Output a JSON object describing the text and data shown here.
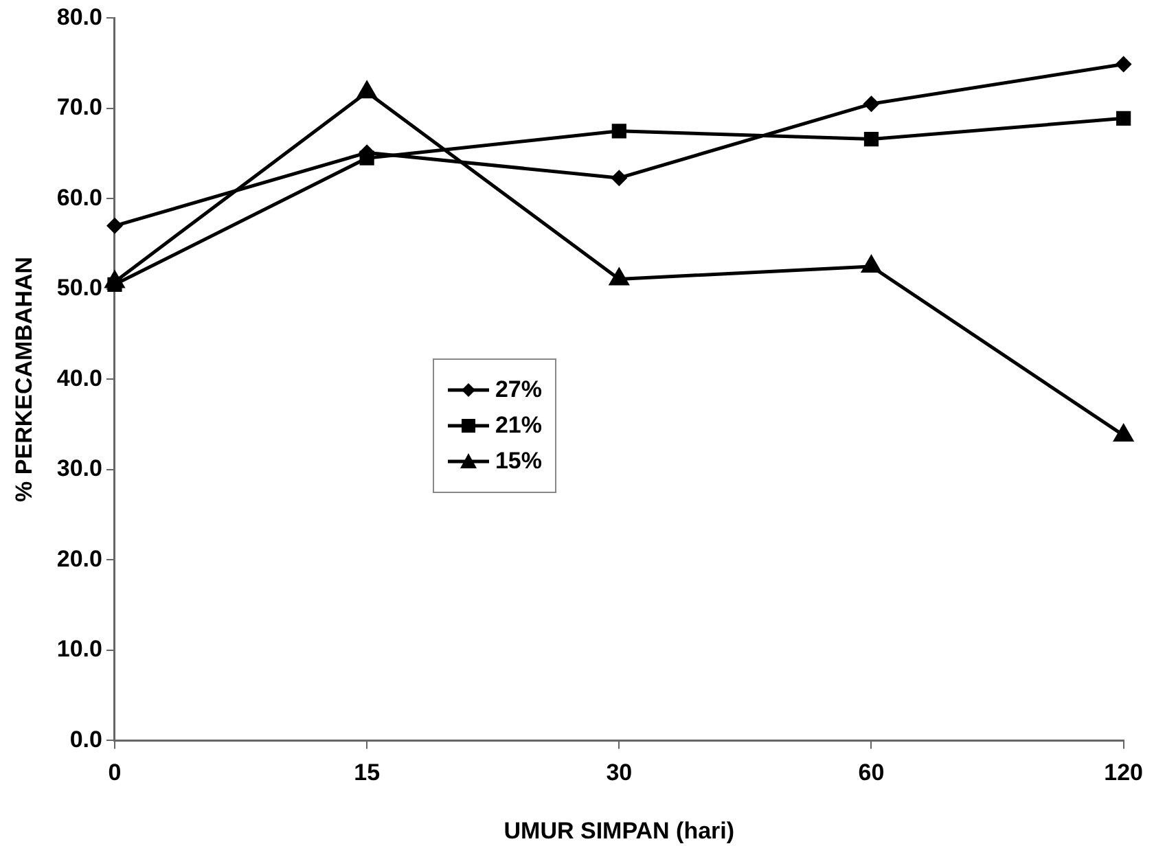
{
  "chart_data": {
    "type": "line",
    "xlabel": "UMUR SIMPAN (hari)",
    "ylabel": "% PERKECAMBAHAN",
    "categories": [
      "0",
      "15",
      "30",
      "60",
      "120"
    ],
    "series": [
      {
        "name": "27%",
        "color": "#000000",
        "marker": "diamond",
        "values": [
          57.0,
          65.1,
          62.3,
          70.5,
          74.9
        ]
      },
      {
        "name": "21%",
        "color": "#000000",
        "marker": "square",
        "values": [
          50.5,
          64.5,
          67.5,
          66.6,
          68.9
        ]
      },
      {
        "name": "15%",
        "color": "#000000",
        "marker": "triangle",
        "values": [
          50.8,
          71.8,
          51.1,
          52.5,
          33.8
        ]
      }
    ],
    "ylim": [
      0,
      80
    ],
    "yticks": [
      {
        "value": 0,
        "label": "0.0"
      },
      {
        "value": 10,
        "label": "10.0"
      },
      {
        "value": 20,
        "label": "20.0"
      },
      {
        "value": 30,
        "label": "30.0"
      },
      {
        "value": 40,
        "label": "40.0"
      },
      {
        "value": 50,
        "label": "50.0"
      },
      {
        "value": 60,
        "label": "60.0"
      },
      {
        "value": 70,
        "label": "70.0"
      },
      {
        "value": 80,
        "label": "80.0"
      }
    ],
    "grid": false,
    "legend": "center",
    "line_style": "solid"
  }
}
